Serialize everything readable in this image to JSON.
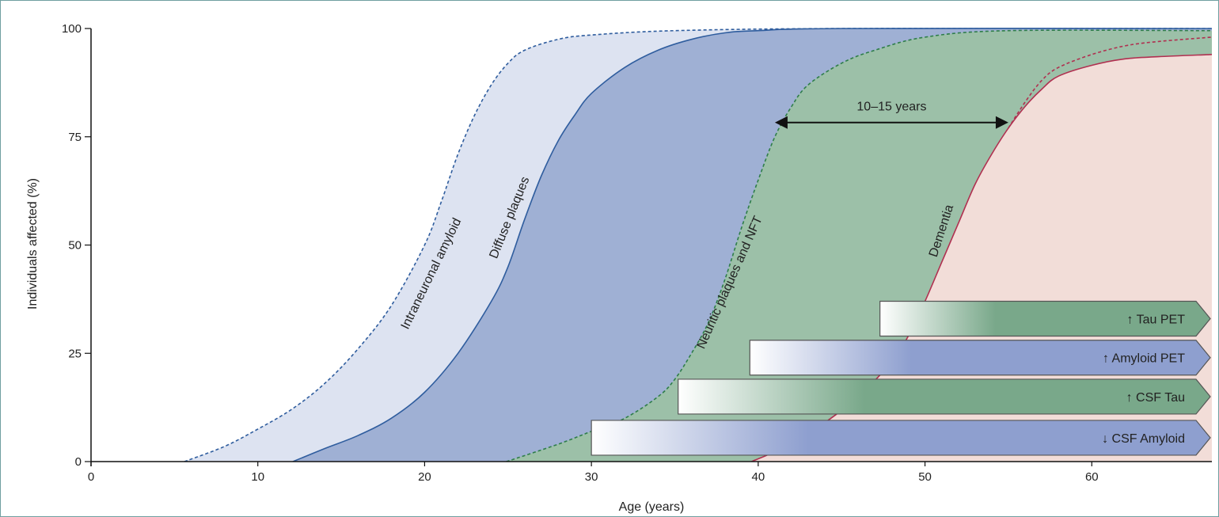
{
  "chart_data": {
    "type": "area",
    "title": "",
    "xlabel": "Age (years)",
    "ylabel": "Individuals affected (%)",
    "xlim": [
      0,
      67.2
    ],
    "ylim": [
      0,
      100
    ],
    "x_ticks": [
      0,
      10,
      20,
      30,
      40,
      50,
      60
    ],
    "y_ticks": [
      0,
      25,
      50,
      75,
      100
    ],
    "x_tick_labels": [
      "0",
      "10",
      "20",
      "30",
      "40",
      "50",
      "60"
    ],
    "y_tick_labels": [
      "0",
      "25",
      "50",
      "75",
      "100"
    ],
    "grid": false,
    "series": [
      {
        "name": "Intraneuronal amyloid",
        "line": "dashed",
        "stroke": "#2f5d9e",
        "fill": "#dde3f1",
        "points": [
          [
            5.6,
            0
          ],
          [
            8,
            3.5
          ],
          [
            10,
            7.5
          ],
          [
            12,
            12
          ],
          [
            14,
            18
          ],
          [
            16,
            26
          ],
          [
            18,
            36
          ],
          [
            20,
            50
          ],
          [
            21,
            60
          ],
          [
            22,
            71
          ],
          [
            23,
            80
          ],
          [
            24,
            87
          ],
          [
            25,
            92
          ],
          [
            26,
            95
          ],
          [
            28,
            97.5
          ],
          [
            30,
            98.5
          ],
          [
            35,
            99.5
          ],
          [
            45,
            100
          ],
          [
            67.2,
            100
          ]
        ]
      },
      {
        "name": "Diffuse plaques",
        "line": "solid",
        "stroke": "#2f5d9e",
        "fill": "#9fb0d4",
        "points": [
          [
            12.1,
            0
          ],
          [
            14,
            3
          ],
          [
            16,
            6
          ],
          [
            18,
            10
          ],
          [
            20,
            16
          ],
          [
            22,
            25
          ],
          [
            24,
            37
          ],
          [
            25,
            45
          ],
          [
            26,
            56
          ],
          [
            27,
            66
          ],
          [
            28,
            74
          ],
          [
            29,
            80
          ],
          [
            30,
            85
          ],
          [
            32,
            91
          ],
          [
            34,
            95
          ],
          [
            36,
            97.5
          ],
          [
            38,
            99
          ],
          [
            40,
            99.5
          ],
          [
            45,
            100
          ],
          [
            67.2,
            100
          ]
        ]
      },
      {
        "name": "Neuritic plaques and NFT",
        "line": "dashed",
        "stroke": "#2e7d4a",
        "fill": "#9cc0a8",
        "points": [
          [
            24.9,
            0
          ],
          [
            28,
            4
          ],
          [
            30,
            7
          ],
          [
            32,
            10
          ],
          [
            34,
            15
          ],
          [
            35,
            19
          ],
          [
            36,
            25
          ],
          [
            37,
            32
          ],
          [
            38,
            42
          ],
          [
            39,
            54
          ],
          [
            40,
            65
          ],
          [
            41,
            75
          ],
          [
            42,
            82
          ],
          [
            43,
            87
          ],
          [
            45,
            92
          ],
          [
            47,
            95
          ],
          [
            50,
            98
          ],
          [
            55,
            99.5
          ],
          [
            67.2,
            99.5
          ]
        ]
      },
      {
        "name": "Dementia",
        "line": "solid",
        "stroke": "#b03050",
        "fill": "#f2ddd8",
        "points": [
          [
            39.6,
            0
          ],
          [
            42,
            4
          ],
          [
            44,
            9
          ],
          [
            46,
            15
          ],
          [
            48,
            23
          ],
          [
            49,
            29
          ],
          [
            50,
            37
          ],
          [
            51,
            46
          ],
          [
            52,
            55
          ],
          [
            53,
            64
          ],
          [
            54,
            71
          ],
          [
            55,
            77
          ],
          [
            56,
            82
          ],
          [
            57,
            86
          ],
          [
            58,
            89
          ],
          [
            60,
            91.5
          ],
          [
            62,
            93
          ],
          [
            64,
            93.5
          ],
          [
            67.2,
            94
          ]
        ],
        "dashed_upper": [
          [
            55,
            77
          ],
          [
            56,
            83
          ],
          [
            57,
            88
          ],
          [
            58,
            91
          ],
          [
            60,
            94
          ],
          [
            62,
            96
          ],
          [
            64,
            97
          ],
          [
            67.2,
            98
          ]
        ]
      }
    ],
    "annotations": [
      {
        "label": "10–15 years",
        "x_start": 41,
        "x_end": 55,
        "y": 78.3
      }
    ],
    "biomarkers": [
      {
        "label": "↑ Tau PET",
        "x_start": 47.3,
        "y_center": 33,
        "style": "green"
      },
      {
        "label": "↑ Amyloid PET",
        "x_start": 39.5,
        "y_center": 24,
        "style": "blue"
      },
      {
        "label": "↑ CSF Tau",
        "x_start": 35.2,
        "y_center": 15,
        "style": "green"
      },
      {
        "label": "↓ CSF Amyloid",
        "x_start": 30,
        "y_center": 5.5,
        "style": "blue"
      }
    ]
  },
  "colors": {
    "axis": "#111111",
    "frame": "#6f9fa0",
    "bio_green": "#79a88a",
    "bio_blue": "#8e9fcf",
    "bio_edge": "#555555"
  }
}
